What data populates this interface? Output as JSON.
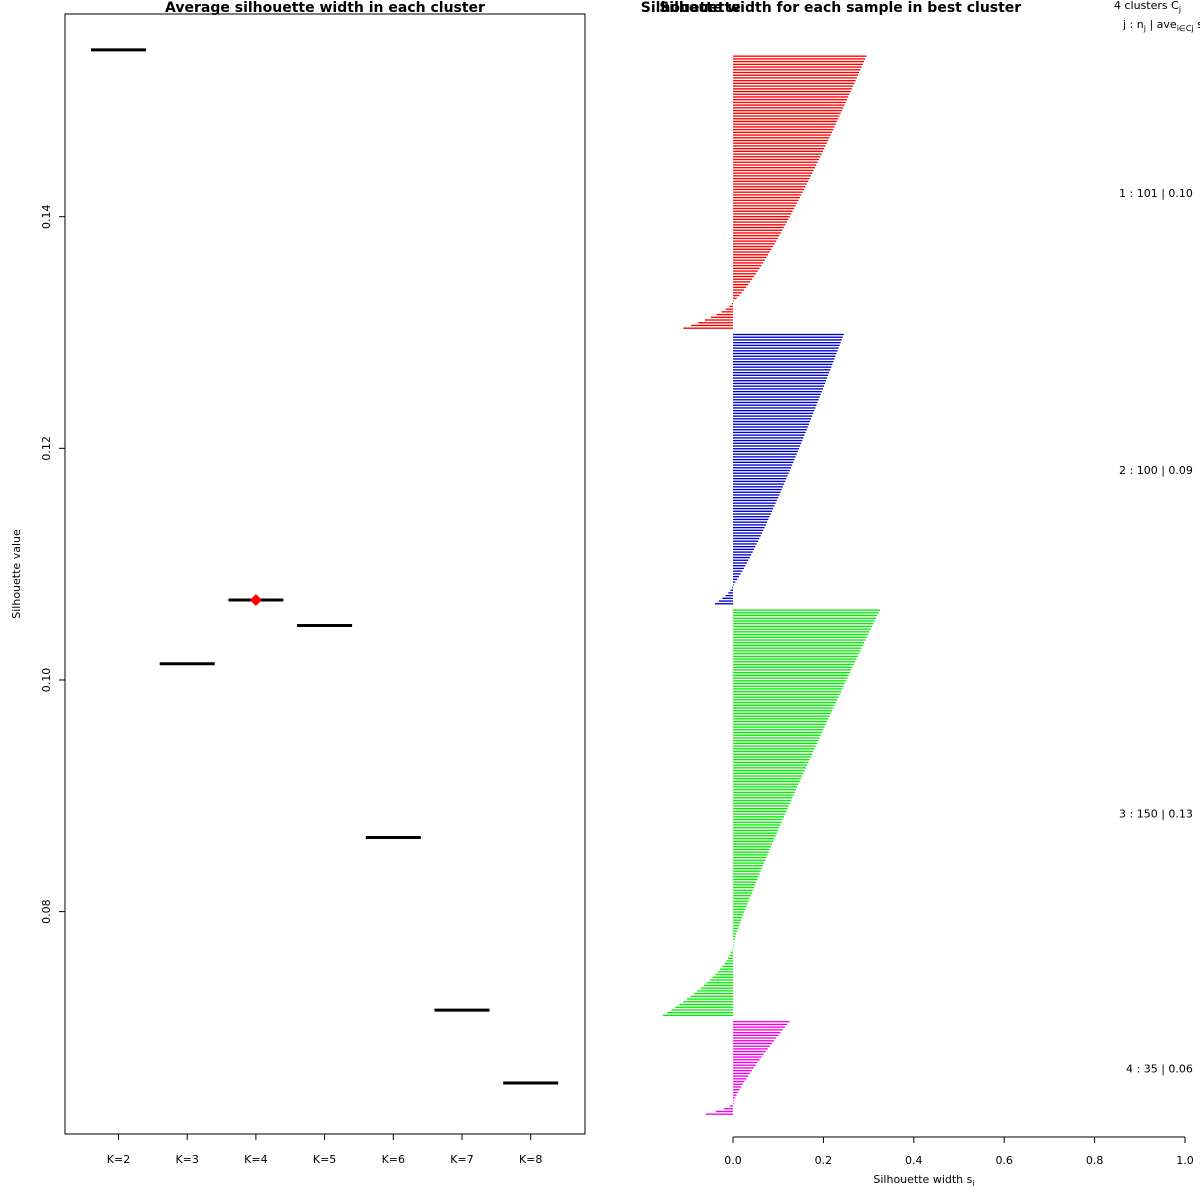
{
  "chart_data": [
    {
      "type": "scatter",
      "title": "Average silhouette width in each cluster",
      "ylabel": "Silhouette value",
      "xlabel": "",
      "categories": [
        "K=2",
        "K=3",
        "K=4",
        "K=5",
        "K=6",
        "K=7",
        "K=8"
      ],
      "values": [
        0.1544,
        0.1014,
        0.1069,
        0.1047,
        0.0864,
        0.0715,
        0.0652
      ],
      "ylim": [
        0.0608,
        0.1575
      ],
      "yticks": [
        0.08,
        0.1,
        0.12,
        0.14
      ],
      "ytick_labels": [
        "0.08",
        "0.10",
        "0.12",
        "0.14"
      ],
      "best": {
        "category": "K=4",
        "value": 0.1069
      },
      "colors": {
        "segment": "#000000",
        "best_marker": "#ff0000"
      }
    },
    {
      "type": "bar",
      "orientation": "horizontal",
      "title": "Silhouette width for each sample in best cluster",
      "overlay_text": "Silhouette",
      "xlabel": "Silhouette width s",
      "xlabel_sub": "i",
      "xlim": [
        0,
        1
      ],
      "xticks": [
        0.0,
        0.2,
        0.4,
        0.6,
        0.8,
        1.0
      ],
      "xtick_labels": [
        "0.0",
        "0.2",
        "0.4",
        "0.6",
        "0.8",
        "1.0"
      ],
      "legend_header_1": "4  clusters  C",
      "legend_header_1_sub": "j",
      "legend_header_2": "j :  n",
      "legend_header_2_sub": "j",
      "legend_header_2_tail": " | ave",
      "legend_header_2_sub2": "i∈Cj",
      "legend_header_2_end": "  s",
      "clusters": [
        {
          "id": 1,
          "n": 101,
          "label": "1 :  101  |  0.10",
          "color": "#ff0000",
          "max": 0.295,
          "pos_end": 0.0,
          "min": -0.11,
          "neg_count": 10,
          "shape": 0.8
        },
        {
          "id": 2,
          "n": 100,
          "label": "2 :  100  |  0.09",
          "color": "#0000cd",
          "max": 0.245,
          "pos_end": 0.0,
          "min": -0.04,
          "neg_count": 7,
          "shape": 0.85
        },
        {
          "id": 3,
          "n": 150,
          "label": "3 :  150  |  0.13",
          "color": "#00ee00",
          "max": 0.325,
          "pos_end": 0.0,
          "min": -0.155,
          "neg_count": 26,
          "shape": 1.1
        },
        {
          "id": 4,
          "n": 35,
          "label": "4 :  35  |  0.06",
          "color": "#ee00ee",
          "max": 0.125,
          "pos_end": 0.0,
          "min": -0.06,
          "neg_count": 4,
          "shape": 1.2
        }
      ]
    }
  ]
}
